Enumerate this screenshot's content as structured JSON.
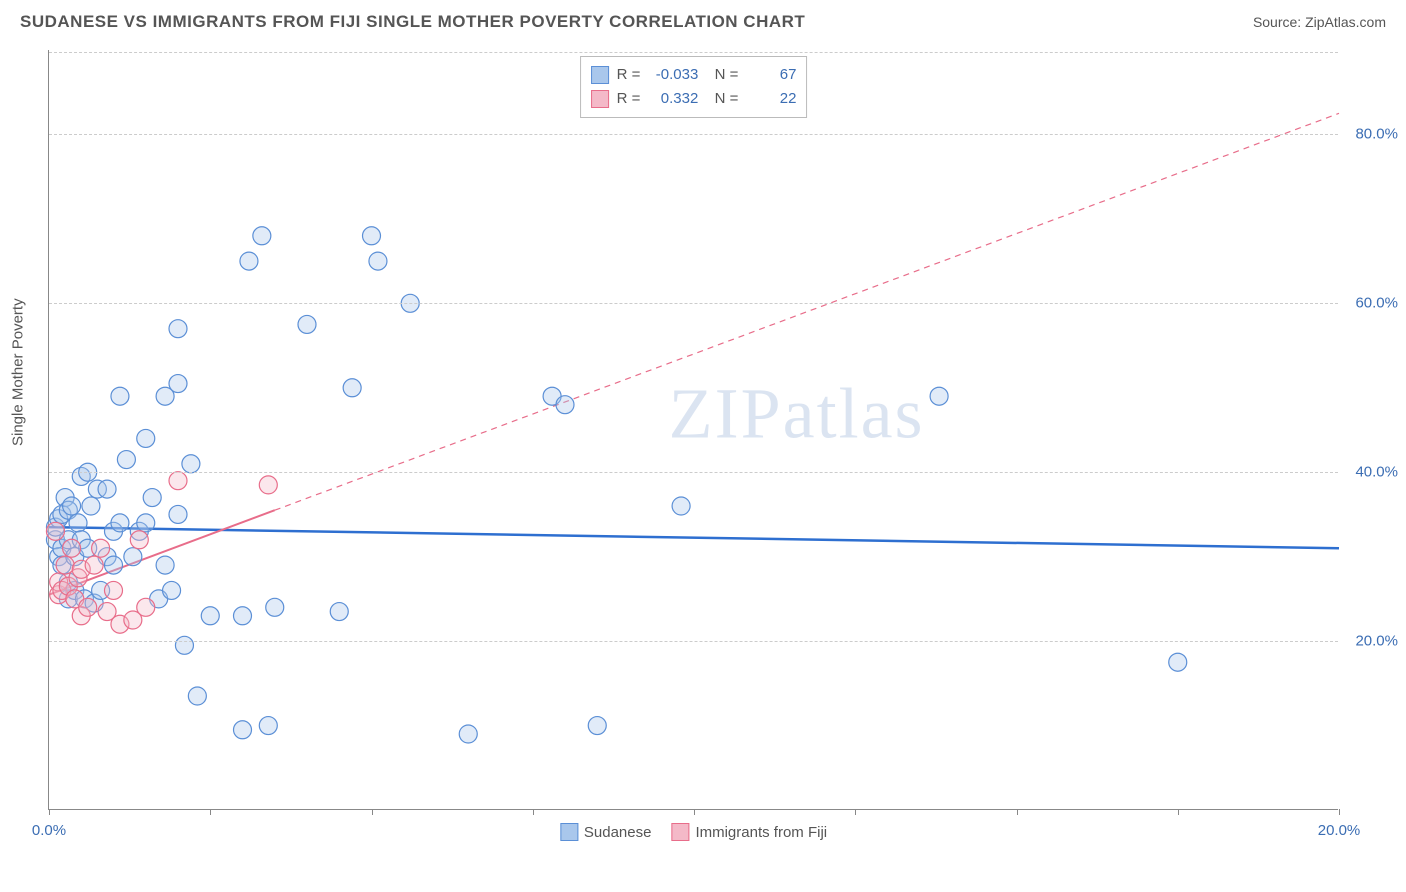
{
  "header": {
    "title": "SUDANESE VS IMMIGRANTS FROM FIJI SINGLE MOTHER POVERTY CORRELATION CHART",
    "source": "Source: ZipAtlas.com"
  },
  "chart": {
    "type": "scatter",
    "y_axis_label": "Single Mother Poverty",
    "watermark": "ZIPatlas",
    "background_color": "#ffffff",
    "grid_color": "#cccccc",
    "axis_color": "#888888",
    "text_color": "#555555",
    "tick_label_color": "#3b6db3",
    "title_fontsize": 17,
    "label_fontsize": 15,
    "xlim": [
      0,
      20
    ],
    "ylim": [
      0,
      90
    ],
    "y_ticks": [
      20,
      40,
      60,
      80
    ],
    "y_tick_labels": [
      "20.0%",
      "40.0%",
      "60.0%",
      "80.0%"
    ],
    "x_ticks": [
      0,
      2.5,
      5,
      7.5,
      10,
      12.5,
      15,
      17.5,
      20
    ],
    "x_tick_labels_shown": {
      "0": "0.0%",
      "20": "20.0%"
    },
    "marker_radius": 9,
    "marker_stroke_width": 1.2,
    "marker_fill_opacity": 0.35,
    "series": [
      {
        "name": "Sudanese",
        "color_fill": "#a9c7ec",
        "color_stroke": "#5b8fd6",
        "R": "-0.033",
        "N": "67",
        "trend": {
          "style": "solid",
          "width": 2.5,
          "color": "#2e6fd0",
          "x1": 0,
          "y1": 33.5,
          "x2": 20,
          "y2": 31.0
        },
        "points": [
          [
            0.1,
            32
          ],
          [
            0.1,
            33.5
          ],
          [
            0.15,
            30
          ],
          [
            0.15,
            34.5
          ],
          [
            0.2,
            35
          ],
          [
            0.2,
            31
          ],
          [
            0.2,
            29
          ],
          [
            0.25,
            37
          ],
          [
            0.3,
            32
          ],
          [
            0.3,
            35.5
          ],
          [
            0.3,
            27
          ],
          [
            0.3,
            25
          ],
          [
            0.35,
            36
          ],
          [
            0.4,
            30
          ],
          [
            0.4,
            26
          ],
          [
            0.45,
            34
          ],
          [
            0.5,
            39.5
          ],
          [
            0.5,
            32
          ],
          [
            0.55,
            25
          ],
          [
            0.6,
            31
          ],
          [
            0.6,
            40
          ],
          [
            0.65,
            36
          ],
          [
            0.7,
            24.5
          ],
          [
            0.75,
            38
          ],
          [
            0.8,
            26
          ],
          [
            0.9,
            38
          ],
          [
            0.9,
            30
          ],
          [
            1.0,
            33
          ],
          [
            1.0,
            29
          ],
          [
            1.1,
            49
          ],
          [
            1.1,
            34
          ],
          [
            1.2,
            41.5
          ],
          [
            1.3,
            30
          ],
          [
            1.4,
            33
          ],
          [
            1.5,
            44
          ],
          [
            1.5,
            34
          ],
          [
            1.6,
            37
          ],
          [
            1.7,
            25
          ],
          [
            1.8,
            29
          ],
          [
            1.8,
            49
          ],
          [
            1.9,
            26
          ],
          [
            2.0,
            35
          ],
          [
            2.0,
            50.5
          ],
          [
            2.0,
            57
          ],
          [
            2.1,
            19.5
          ],
          [
            2.2,
            41
          ],
          [
            2.3,
            13.5
          ],
          [
            2.5,
            23
          ],
          [
            3.0,
            23
          ],
          [
            3.0,
            9.5
          ],
          [
            3.1,
            65
          ],
          [
            3.3,
            68
          ],
          [
            3.4,
            10
          ],
          [
            3.5,
            24
          ],
          [
            4.0,
            57.5
          ],
          [
            4.5,
            23.5
          ],
          [
            4.7,
            50
          ],
          [
            5.0,
            68
          ],
          [
            5.1,
            65
          ],
          [
            5.6,
            60
          ],
          [
            6.5,
            9
          ],
          [
            7.8,
            49
          ],
          [
            8.0,
            48
          ],
          [
            8.5,
            10
          ],
          [
            9.8,
            36
          ],
          [
            13.8,
            49
          ],
          [
            17.5,
            17.5
          ]
        ]
      },
      {
        "name": "Immigrants from Fiji",
        "color_fill": "#f4b9c8",
        "color_stroke": "#e86d8a",
        "R": "0.332",
        "N": "22",
        "trend": {
          "style": "solid_then_dashed",
          "width": 2,
          "color": "#e86d8a",
          "solid_x1": 0,
          "solid_y1": 25.5,
          "solid_x2": 3.5,
          "solid_y2": 35.5,
          "dash_x2": 20,
          "dash_y2": 82.5
        },
        "points": [
          [
            0.1,
            33
          ],
          [
            0.15,
            25.5
          ],
          [
            0.15,
            27
          ],
          [
            0.2,
            26
          ],
          [
            0.25,
            29
          ],
          [
            0.3,
            26.5
          ],
          [
            0.35,
            31
          ],
          [
            0.4,
            25
          ],
          [
            0.45,
            27.5
          ],
          [
            0.5,
            28.5
          ],
          [
            0.5,
            23
          ],
          [
            0.6,
            24
          ],
          [
            0.7,
            29
          ],
          [
            0.8,
            31
          ],
          [
            0.9,
            23.5
          ],
          [
            1.0,
            26
          ],
          [
            1.1,
            22
          ],
          [
            1.3,
            22.5
          ],
          [
            1.4,
            32
          ],
          [
            1.5,
            24
          ],
          [
            2.0,
            39
          ],
          [
            3.4,
            38.5
          ]
        ]
      }
    ],
    "legend_bottom": [
      {
        "label": "Sudanese",
        "fill": "#a9c7ec",
        "stroke": "#5b8fd6"
      },
      {
        "label": "Immigrants from Fiji",
        "fill": "#f4b9c8",
        "stroke": "#e86d8a"
      }
    ]
  }
}
